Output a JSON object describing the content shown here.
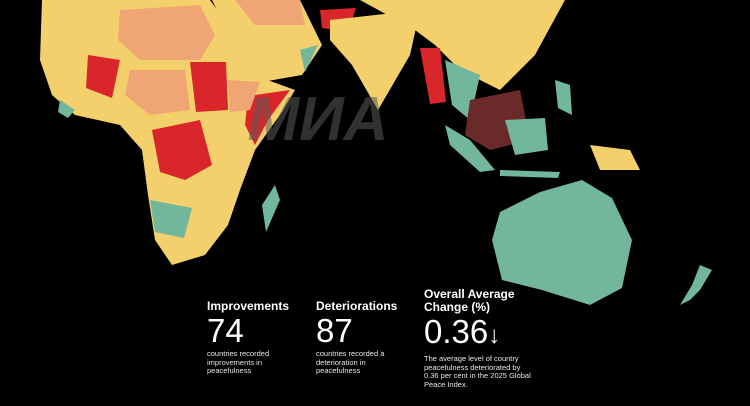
{
  "watermark": "МИА",
  "stats": [
    {
      "title": "Improvements",
      "value": "74",
      "description": "countries recorded improvements in peacefulness"
    },
    {
      "title": "Deteriorations",
      "value": "87",
      "description": "countries recorded a deterioration in peacefulness"
    },
    {
      "title": "Overall Average Change (%)",
      "value": "0.36",
      "trend": "↓",
      "description": "The average level of country peacefulness deteriorated by 0.36 per cent in the 2025 Global Peace Index."
    }
  ]
}
